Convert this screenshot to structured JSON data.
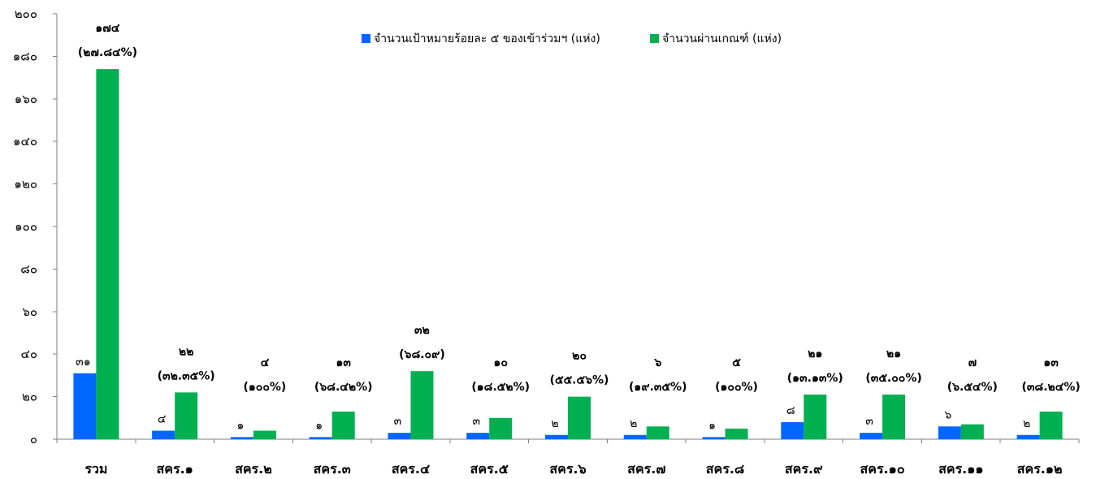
{
  "chart_data": {
    "type": "bar",
    "categories": [
      "รวม",
      "สคร.๑",
      "สคร.๒",
      "สคร.๓",
      "สคร.๔",
      "สคร.๕",
      "สคร.๖",
      "สคร.๗",
      "สคร.๘",
      "สคร.๙",
      "สคร.๑๐",
      "สคร.๑๑",
      "สคร.๑๒"
    ],
    "series": [
      {
        "name": "จำนวนเป้าหมายร้อยละ ๕ ของเข้าร่วมฯ (แห่ง)",
        "color": "#0066ff",
        "values": [
          31,
          4,
          1,
          1,
          3,
          3,
          2,
          2,
          1,
          8,
          3,
          6,
          2
        ],
        "labels": [
          "๓๑",
          "๔",
          "๑",
          "๑",
          "๓",
          "๓",
          "๒",
          "๒",
          "๑",
          "๘",
          "๓",
          "๖",
          "๒"
        ]
      },
      {
        "name": "จำนวนผ่านเกณฑ์ (แห่ง)",
        "color": "#00b050",
        "values": [
          174,
          22,
          4,
          13,
          32,
          10,
          20,
          6,
          5,
          21,
          21,
          7,
          13
        ],
        "labels": [
          "๑๗๔",
          "๒๒",
          "๔",
          "๑๓",
          "๓๒",
          "๑๐",
          "๒๐",
          "๖",
          "๕",
          "๒๑",
          "๒๑",
          "๗",
          "๑๓"
        ],
        "percent_labels": [
          "(๒๗.๘๔%)",
          "(๓๒.๓๕%)",
          "(๑๐๐%)",
          "(๖๘.๔๒%)",
          "(๖๘.๐๙)",
          "(๑๘.๕๒%)",
          "(๕๕.๕๖%)",
          "(๑๙.๓๕%)",
          "(๑๐๐%)",
          "(๑๓.๑๓%)",
          "(๓๕.๐๐%)",
          "(๖.๕๔%)",
          "(๓๘.๒๔%)"
        ]
      }
    ],
    "ylim": [
      0,
      200
    ],
    "yticks": [
      0,
      20,
      40,
      60,
      80,
      100,
      120,
      140,
      160,
      180,
      200
    ],
    "ytick_labels": [
      "๐",
      "๒๐",
      "๔๐",
      "๖๐",
      "๘๐",
      "๑๐๐",
      "๑๒๐",
      "๑๔๐",
      "๑๖๐",
      "๑๘๐",
      "๒๐๐"
    ],
    "title": "",
    "xlabel": "",
    "ylabel": "",
    "grid": false,
    "legend_position": "top"
  }
}
